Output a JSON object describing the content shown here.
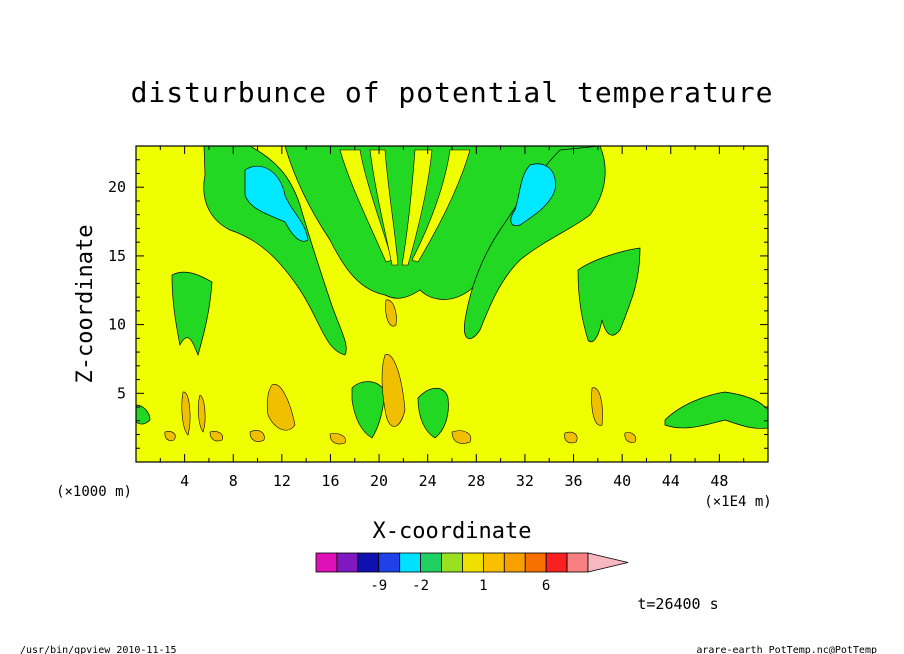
{
  "chart_data": {
    "type": "heatmap",
    "title": "disturbunce of potential temperature",
    "xlabel": "X-coordinate",
    "ylabel": "Z-coordinate",
    "x_unit_left": "(×1000 m)",
    "x_unit_right": "(×1E4 m)",
    "xlim": [
      0,
      52
    ],
    "ylim": [
      0,
      23
    ],
    "x_ticks": [
      4,
      8,
      12,
      16,
      20,
      24,
      28,
      32,
      36,
      40,
      44,
      48
    ],
    "y_ticks": [
      5,
      10,
      15,
      20
    ],
    "grid": false,
    "colorbar": {
      "levels": [
        {
          "color": "#e010b8"
        },
        {
          "color": "#8018c0"
        },
        {
          "color": "#1010b0"
        },
        {
          "color": "#2040e8"
        },
        {
          "color": "#00e0ff"
        },
        {
          "color": "#20d060"
        },
        {
          "color": "#98e020"
        },
        {
          "color": "#f0e000"
        },
        {
          "color": "#f8c000"
        },
        {
          "color": "#f8a000"
        },
        {
          "color": "#f87000"
        },
        {
          "color": "#f82020"
        },
        {
          "color": "#f88080"
        },
        {
          "color": "#f8b8c0"
        }
      ],
      "tick_labels": [
        {
          "text": "-9",
          "after_segment": 2
        },
        {
          "text": "-2",
          "after_segment": 4
        },
        {
          "text": "1",
          "after_segment": 7
        },
        {
          "text": "6",
          "after_segment": 10
        }
      ]
    },
    "background_color": "#f0ff00",
    "green_color": "#22d822",
    "cyan_color": "#00e8ff",
    "orange_color": "#f0c000",
    "time_label": "t=26400 s"
  },
  "footer": {
    "left": "/usr/bin/gpview  2010-11-15",
    "right": "arare-earth_PotTemp.nc@PotTemp"
  }
}
